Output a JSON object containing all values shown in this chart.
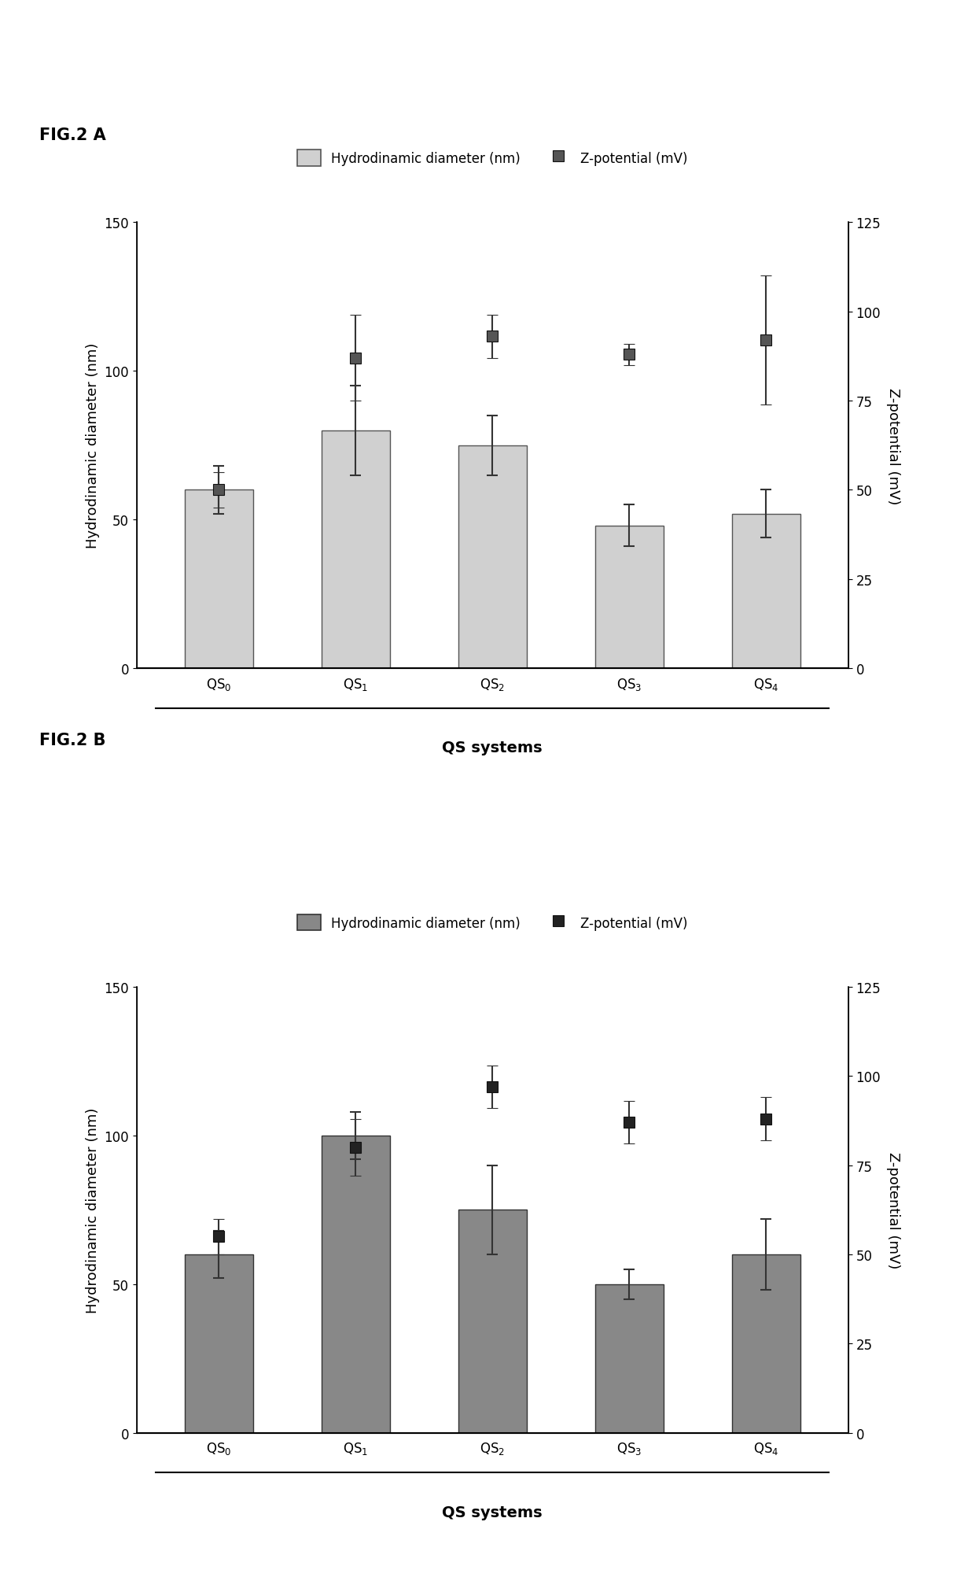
{
  "fig_label_A": "FIG.2 A",
  "fig_label_B": "FIG.2 B",
  "categories": [
    "QS$_0$",
    "QS$_1$",
    "QS$_2$",
    "QS$_3$",
    "QS$_4$"
  ],
  "xlabel": "QS systems",
  "ylabel_left": "Hydrodinamic diameter (nm)",
  "ylabel_right": "Z-potential (mV)",
  "ylim_left": [
    0,
    150
  ],
  "ylim_right": [
    0,
    125
  ],
  "yticks_left": [
    0,
    50,
    100,
    150
  ],
  "yticks_right": [
    0,
    25,
    50,
    75,
    100,
    125
  ],
  "legend_bar_label": "Hydrodinamic diameter (nm)",
  "legend_scatter_label": "Z-potential (mV)",
  "chartA": {
    "bar_values": [
      60,
      80,
      75,
      48,
      52
    ],
    "bar_errors": [
      8,
      15,
      10,
      7,
      8
    ],
    "zpot_values": [
      50,
      87,
      93,
      88,
      92
    ],
    "zpot_errors": [
      5,
      12,
      6,
      3,
      18
    ],
    "bar_color": "#d0d0d0",
    "bar_edgecolor": "#555555",
    "zpot_color": "#555555",
    "zpot_marker": "s",
    "zpot_markersize": 10
  },
  "chartB": {
    "bar_values": [
      60,
      100,
      75,
      50,
      60
    ],
    "bar_errors": [
      8,
      8,
      15,
      5,
      12
    ],
    "zpot_values": [
      55,
      80,
      97,
      87,
      88
    ],
    "zpot_errors": [
      5,
      8,
      6,
      6,
      6
    ],
    "bar_color": "#888888",
    "bar_edgecolor": "#333333",
    "zpot_color": "#222222",
    "zpot_marker": "s",
    "zpot_markersize": 10
  },
  "background_color": "#ffffff",
  "fontsize_label": 13,
  "fontsize_tick": 12,
  "fontsize_legend": 12,
  "fontsize_fig_label": 15
}
